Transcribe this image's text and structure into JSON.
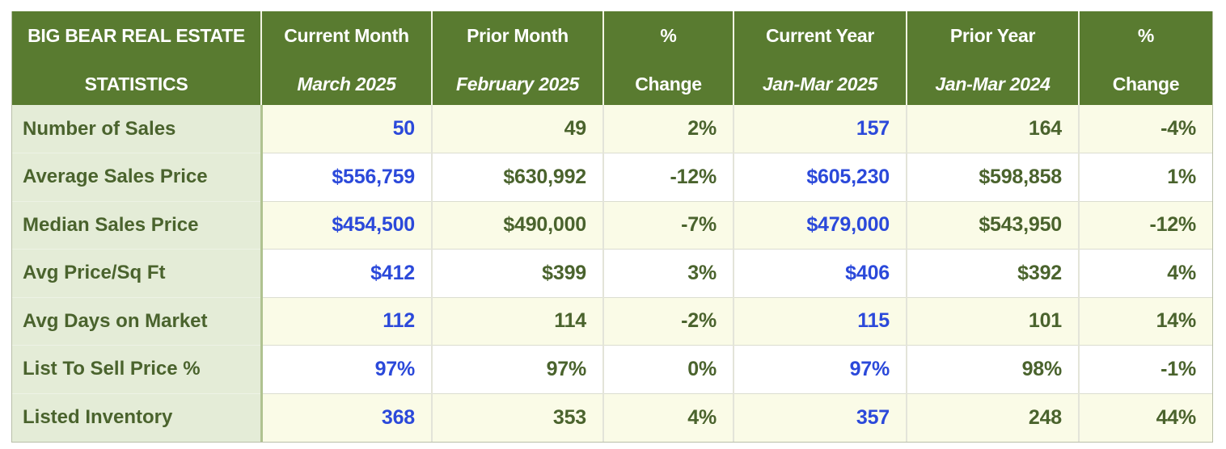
{
  "table": {
    "title_line1": "BIG BEAR REAL ESTATE",
    "title_line2": "STATISTICS",
    "header": {
      "columns": [
        {
          "key": "current-month",
          "line1": "Current Month",
          "line2": "March 2025",
          "italic2": true
        },
        {
          "key": "prior-month",
          "line1": "Prior Month",
          "line2": "February 2025",
          "italic2": true
        },
        {
          "key": "pct-change-month",
          "line1": "%",
          "line2": "Change",
          "italic2": false
        },
        {
          "key": "current-year",
          "line1": "Current Year",
          "line2": "Jan-Mar 2025",
          "italic2": true
        },
        {
          "key": "prior-year",
          "line1": "Prior Year",
          "line2": "Jan-Mar 2024",
          "italic2": true
        },
        {
          "key": "pct-change-year",
          "line1": "%",
          "line2": "Change",
          "italic2": false
        }
      ]
    },
    "rows": [
      {
        "label": "Number of Sales",
        "values": [
          "50",
          "49",
          "2%",
          "157",
          "164",
          "-4%"
        ]
      },
      {
        "label": "Average Sales Price",
        "values": [
          "$556,759",
          "$630,992",
          "-12%",
          "$605,230",
          "$598,858",
          "1%"
        ]
      },
      {
        "label": "Median Sales Price",
        "values": [
          "$454,500",
          "$490,000",
          "-7%",
          "$479,000",
          "$543,950",
          "-12%"
        ]
      },
      {
        "label": "Avg Price/Sq Ft",
        "values": [
          "$412",
          "$399",
          "3%",
          "$406",
          "$392",
          "4%"
        ]
      },
      {
        "label": "Avg Days on Market",
        "values": [
          "112",
          "114",
          "-2%",
          "115",
          "101",
          "14%"
        ]
      },
      {
        "label": "List To Sell Price %",
        "values": [
          "97%",
          "97%",
          "0%",
          "97%",
          "98%",
          "-1%"
        ]
      },
      {
        "label": "Listed Inventory",
        "values": [
          "368",
          "353",
          "4%",
          "357",
          "248",
          "44%"
        ]
      }
    ],
    "colors": {
      "header_bg": "#597B30",
      "header_text": "#FFFFFF",
      "label_bg": "#E4ECD7",
      "label_text": "#4A632D",
      "row_cream": "#FAFBE7",
      "row_white": "#FFFFFF",
      "value_green": "#4A632D",
      "value_blue": "#2B49DA",
      "outer_border": "#B9BFA9"
    },
    "blue_value_columns": [
      0,
      3
    ]
  }
}
